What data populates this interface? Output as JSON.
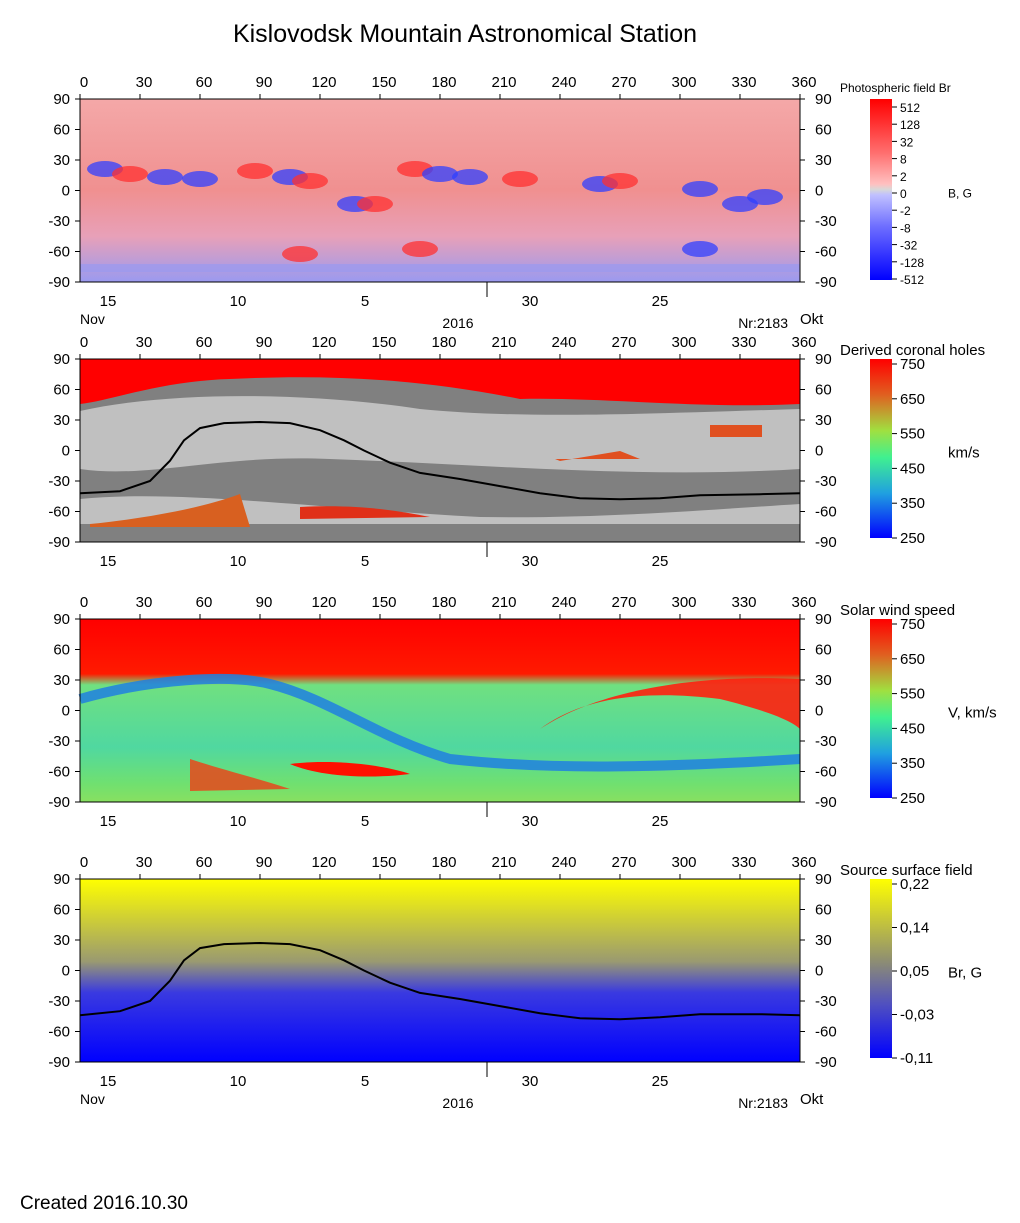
{
  "page": {
    "title": "Kislovodsk Mountain Astronomical Station",
    "created": "Created  2016.10.30"
  },
  "chart_data": [
    {
      "type": "heatmap",
      "title": "Photospheric field Br",
      "unit_label": "B, G",
      "x_ticks": [
        "0",
        "30",
        "60",
        "90",
        "120",
        "150",
        "180",
        "210",
        "240",
        "270",
        "300",
        "330",
        "360"
      ],
      "y_ticks": [
        "90",
        "60",
        "30",
        "0",
        "-30",
        "-60",
        "-90"
      ],
      "xlim": [
        0,
        360
      ],
      "ylim": [
        -90,
        90
      ],
      "colorbar_ticks": [
        "512",
        "128",
        "32",
        "8",
        "2",
        "0",
        "-2",
        "-8",
        "-32",
        "-128",
        "-512"
      ],
      "date_ticks": [
        "15",
        "10",
        "5",
        "30",
        "25"
      ],
      "month_left": "Nov",
      "year": "2016",
      "carrington": "Nr:2183",
      "month_right": "Okt",
      "colors": {
        "positive": "#ff0000",
        "negative": "#0000ff",
        "neutral": "#d8d8d8"
      }
    },
    {
      "type": "heatmap",
      "title": "Derived coronal holes",
      "unit_label": "km/s",
      "x_ticks": [
        "0",
        "30",
        "60",
        "90",
        "120",
        "150",
        "180",
        "210",
        "240",
        "270",
        "300",
        "330",
        "360"
      ],
      "y_ticks": [
        "90",
        "60",
        "30",
        "0",
        "-30",
        "-60",
        "-90"
      ],
      "xlim": [
        0,
        360
      ],
      "ylim": [
        -90,
        90
      ],
      "colorbar_ticks": [
        "750",
        "650",
        "550",
        "450",
        "350",
        "250"
      ],
      "date_ticks": [
        "15",
        "10",
        "5",
        "30",
        "25"
      ],
      "neutral_line": [
        [
          0,
          -42
        ],
        [
          20,
          -40
        ],
        [
          35,
          -30
        ],
        [
          45,
          -10
        ],
        [
          52,
          10
        ],
        [
          60,
          22
        ],
        [
          72,
          27
        ],
        [
          90,
          28
        ],
        [
          105,
          27
        ],
        [
          120,
          20
        ],
        [
          132,
          10
        ],
        [
          142,
          0
        ],
        [
          155,
          -12
        ],
        [
          170,
          -22
        ],
        [
          190,
          -28
        ],
        [
          210,
          -35
        ],
        [
          230,
          -42
        ],
        [
          250,
          -47
        ],
        [
          270,
          -48
        ],
        [
          290,
          -47
        ],
        [
          310,
          -44
        ],
        [
          340,
          -43
        ],
        [
          360,
          -42
        ]
      ],
      "colors": {
        "open_field": "#c0c0c0",
        "closed_field": "#808080",
        "pole": "#ff0000"
      }
    },
    {
      "type": "heatmap",
      "title": "Solar wind speed",
      "unit_label": "V, km/s",
      "x_ticks": [
        "0",
        "30",
        "60",
        "90",
        "120",
        "150",
        "180",
        "210",
        "240",
        "270",
        "300",
        "330",
        "360"
      ],
      "y_ticks": [
        "90",
        "60",
        "30",
        "0",
        "-30",
        "-60",
        "-90"
      ],
      "xlim": [
        0,
        360
      ],
      "ylim": [
        -90,
        90
      ],
      "colorbar_ticks": [
        "750",
        "650",
        "550",
        "450",
        "350",
        "250"
      ],
      "date_ticks": [
        "15",
        "10",
        "5",
        "30",
        "25"
      ],
      "colors": {
        "fast": "#ff0000",
        "slow": "#0000ff"
      }
    },
    {
      "type": "heatmap",
      "title": "Source surface field",
      "unit_label": "Br, G",
      "x_ticks": [
        "0",
        "30",
        "60",
        "90",
        "120",
        "150",
        "180",
        "210",
        "240",
        "270",
        "300",
        "330",
        "360"
      ],
      "y_ticks": [
        "90",
        "60",
        "30",
        "0",
        "-30",
        "-60",
        "-90"
      ],
      "xlim": [
        0,
        360
      ],
      "ylim": [
        -90,
        90
      ],
      "colorbar_ticks": [
        "0,22",
        "0,14",
        "0,05",
        "-0,03",
        "-0,11"
      ],
      "date_ticks": [
        "15",
        "10",
        "5",
        "30",
        "25"
      ],
      "month_left": "Nov",
      "year": "2016",
      "carrington": "Nr:2183",
      "month_right": "Okt",
      "neutral_line": [
        [
          0,
          -44
        ],
        [
          20,
          -40
        ],
        [
          35,
          -30
        ],
        [
          45,
          -10
        ],
        [
          52,
          10
        ],
        [
          60,
          22
        ],
        [
          72,
          26
        ],
        [
          90,
          27
        ],
        [
          105,
          26
        ],
        [
          120,
          20
        ],
        [
          132,
          10
        ],
        [
          142,
          0
        ],
        [
          155,
          -12
        ],
        [
          170,
          -22
        ],
        [
          190,
          -28
        ],
        [
          210,
          -35
        ],
        [
          230,
          -42
        ],
        [
          250,
          -47
        ],
        [
          270,
          -48
        ],
        [
          290,
          -46
        ],
        [
          310,
          -43
        ],
        [
          340,
          -43
        ],
        [
          360,
          -44
        ]
      ],
      "colors": {
        "positive": "#ffff00",
        "negative": "#0000ff"
      }
    }
  ]
}
